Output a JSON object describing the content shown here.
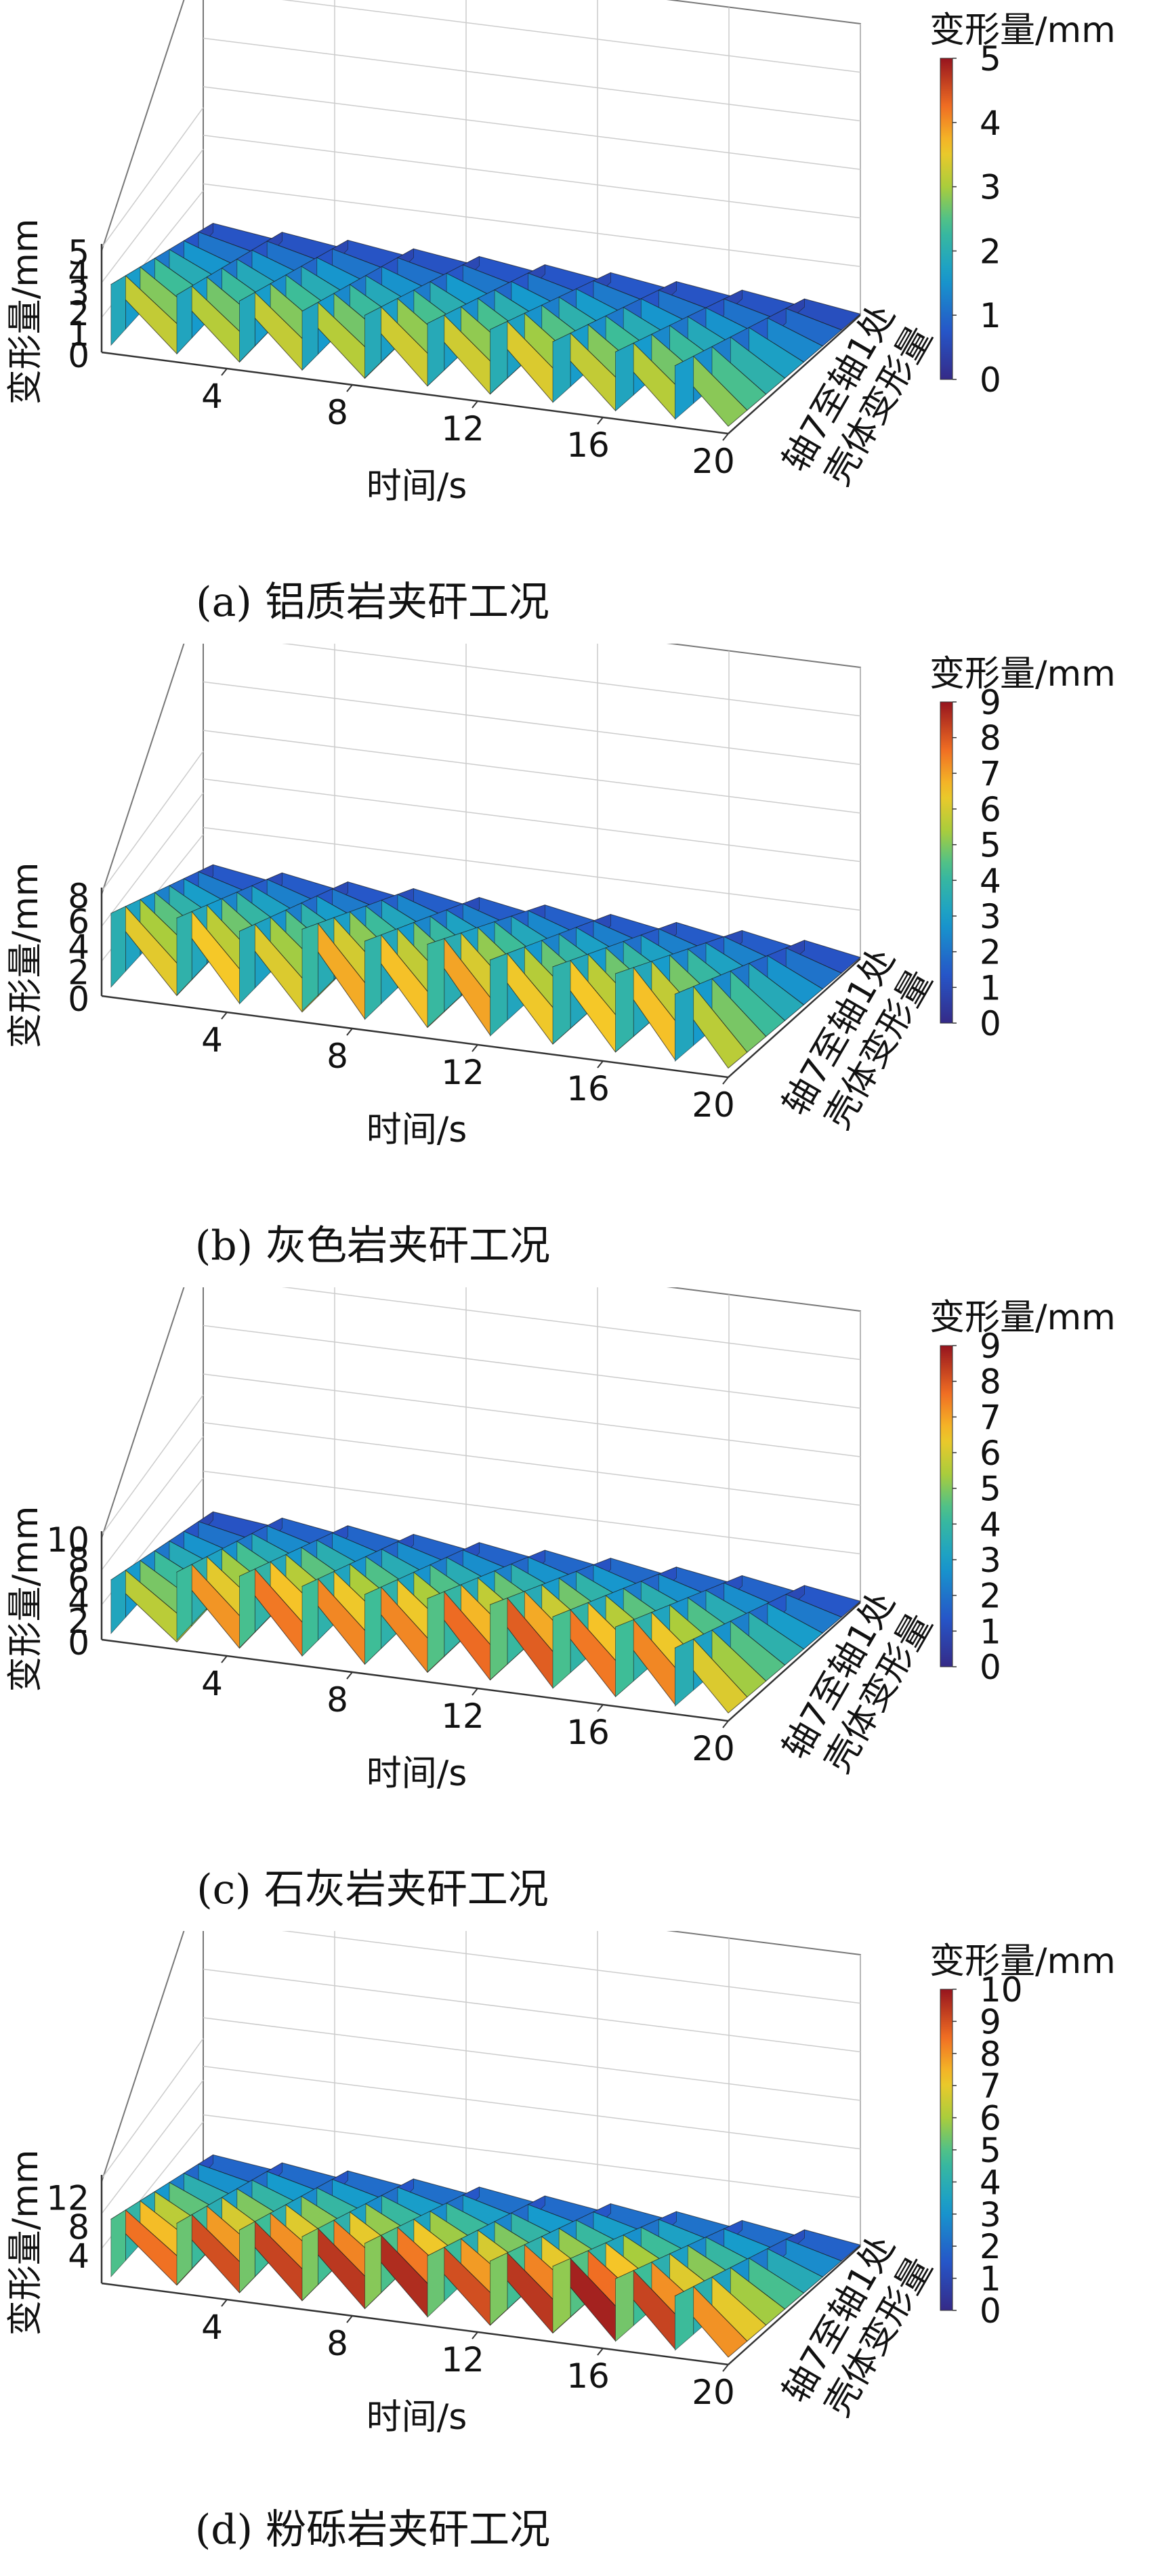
{
  "chart_data": [
    {
      "type": "surface",
      "caption": "(a)  铝质岩夹矸工况",
      "xlabel": "时间/s",
      "ylabel": "轴7至轴1处\n壳体变形量",
      "zlabel": "变形量/mm",
      "x_ticks": [
        "4",
        "8",
        "12",
        "16",
        "20"
      ],
      "x_range": [
        0,
        20
      ],
      "z_ticks": [
        "0",
        "1",
        "2",
        "3",
        "4",
        "5"
      ],
      "z_range": [
        0,
        5
      ],
      "colorbar": {
        "title": "变形量/mm",
        "ticks": [
          "0",
          "1",
          "2",
          "3",
          "4",
          "5"
        ],
        "range": [
          0,
          5
        ],
        "colormap": "jet"
      },
      "peaks": [
        {
          "t": 0.3,
          "v": 3.4
        },
        {
          "t": 2.4,
          "v": 3.3
        },
        {
          "t": 4.4,
          "v": 3.4
        },
        {
          "t": 6.4,
          "v": 3.3
        },
        {
          "t": 8.4,
          "v": 3.5
        },
        {
          "t": 10.4,
          "v": 3.5
        },
        {
          "t": 12.4,
          "v": 3.6
        },
        {
          "t": 14.4,
          "v": 3.4
        },
        {
          "t": 16.4,
          "v": 3.3
        },
        {
          "t": 18.3,
          "v": 3.0
        }
      ],
      "valley_fraction": 0.12
    },
    {
      "type": "surface",
      "caption": "(b)  灰色岩夹矸工况",
      "xlabel": "时间/s",
      "ylabel": "轴7至轴1处\n壳体变形量",
      "zlabel": "变形量/mm",
      "x_ticks": [
        "4",
        "8",
        "12",
        "16",
        "20"
      ],
      "x_range": [
        0,
        20
      ],
      "z_ticks": [
        "0",
        "2",
        "4",
        "6",
        "8"
      ],
      "z_range": [
        0,
        8
      ],
      "colorbar": {
        "title": "变形量/mm",
        "ticks": [
          "0",
          "1",
          "2",
          "3",
          "4",
          "5",
          "6",
          "7",
          "8",
          "9"
        ],
        "range": [
          0,
          9
        ],
        "colormap": "jet"
      },
      "peaks": [
        {
          "t": 0.3,
          "v": 6.6
        },
        {
          "t": 2.4,
          "v": 6.9
        },
        {
          "t": 4.4,
          "v": 6.5
        },
        {
          "t": 6.4,
          "v": 7.3
        },
        {
          "t": 8.4,
          "v": 7.0
        },
        {
          "t": 10.4,
          "v": 7.4
        },
        {
          "t": 12.4,
          "v": 6.8
        },
        {
          "t": 14.4,
          "v": 6.9
        },
        {
          "t": 16.4,
          "v": 7.0
        },
        {
          "t": 18.3,
          "v": 6.0
        }
      ],
      "valley_fraction": 0.12
    },
    {
      "type": "surface",
      "caption": "(c)  石灰岩夹矸工况",
      "xlabel": "时间/s",
      "ylabel": "轴7至轴1处\n壳体变形量",
      "zlabel": "变形量/mm",
      "x_ticks": [
        "4",
        "8",
        "12",
        "16",
        "20"
      ],
      "x_range": [
        0,
        20
      ],
      "z_ticks": [
        "0",
        "2",
        "4",
        "6",
        "8",
        "10"
      ],
      "z_range": [
        0,
        10
      ],
      "colorbar": {
        "title": "变形量/mm",
        "ticks": [
          "0",
          "1",
          "2",
          "3",
          "4",
          "5",
          "6",
          "7",
          "8",
          "9"
        ],
        "range": [
          0,
          9
        ],
        "colormap": "jet"
      },
      "peaks": [
        {
          "t": 0.3,
          "v": 6.0
        },
        {
          "t": 2.4,
          "v": 7.6
        },
        {
          "t": 4.4,
          "v": 8.0
        },
        {
          "t": 6.4,
          "v": 7.8
        },
        {
          "t": 8.4,
          "v": 7.8
        },
        {
          "t": 10.4,
          "v": 8.2
        },
        {
          "t": 12.4,
          "v": 8.4
        },
        {
          "t": 14.4,
          "v": 8.0
        },
        {
          "t": 16.4,
          "v": 7.8
        },
        {
          "t": 18.3,
          "v": 6.5
        }
      ],
      "valley_fraction": 0.12
    },
    {
      "type": "surface",
      "caption": "(d)  粉砾岩夹矸工况",
      "xlabel": "时间/s",
      "ylabel": "轴7至轴1处\n壳体变形量",
      "zlabel": "变形量/mm",
      "x_ticks": [
        "4",
        "8",
        "12",
        "16",
        "20"
      ],
      "x_range": [
        0,
        20
      ],
      "z_ticks": [
        "4",
        "8",
        "12"
      ],
      "z_range": [
        0,
        14
      ],
      "colorbar": {
        "title": "变形量/mm",
        "ticks": [
          "0",
          "1",
          "2",
          "3",
          "4",
          "5",
          "6",
          "7",
          "8",
          "9",
          "10"
        ],
        "range": [
          0,
          10
        ],
        "colormap": "jet"
      },
      "peaks": [
        {
          "t": 0.3,
          "v": 9.0
        },
        {
          "t": 2.4,
          "v": 9.6
        },
        {
          "t": 4.4,
          "v": 9.8
        },
        {
          "t": 6.4,
          "v": 10.0
        },
        {
          "t": 8.4,
          "v": 10.2
        },
        {
          "t": 10.4,
          "v": 9.6
        },
        {
          "t": 12.4,
          "v": 10.0
        },
        {
          "t": 14.4,
          "v": 10.4
        },
        {
          "t": 16.4,
          "v": 9.8
        },
        {
          "t": 18.3,
          "v": 8.5
        }
      ],
      "valley_fraction": 0.12
    }
  ]
}
